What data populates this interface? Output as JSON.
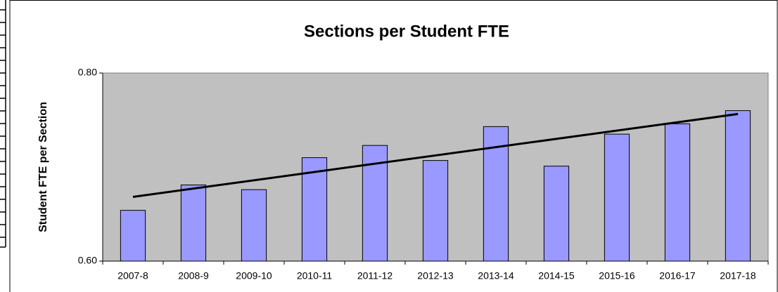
{
  "chart_data": {
    "type": "bar",
    "title": "Sections per Student FTE",
    "y_label": "Student FTE per Section",
    "categories": [
      "2007-8",
      "2008-9",
      "2009-10",
      "2010-11",
      "2011-12",
      "2012-13",
      "2013-14",
      "2014-15",
      "2015-16",
      "2016-17",
      "2017-18"
    ],
    "values": [
      0.654,
      0.681,
      0.676,
      0.71,
      0.723,
      0.707,
      0.743,
      0.701,
      0.735,
      0.746,
      0.76
    ],
    "color": "#9999ff",
    "plot_background": "#c0c0c0",
    "trendline": "linear",
    "ylim": [
      0.6,
      0.8
    ],
    "yticks": [
      {
        "value": 0.6,
        "label": "0.60"
      },
      {
        "value": 0.8,
        "label": "0.80"
      }
    ]
  }
}
